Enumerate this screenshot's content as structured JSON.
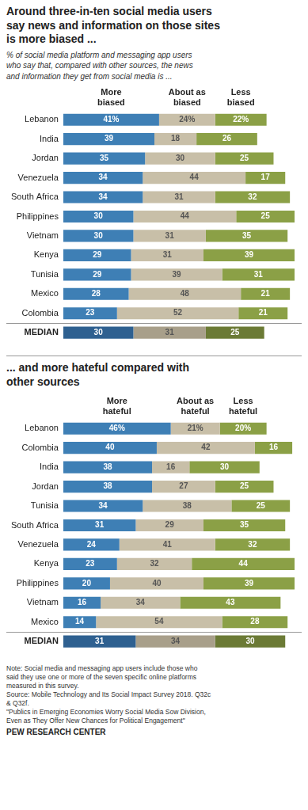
{
  "chart_data": [
    {
      "type": "bar",
      "orientation": "horizontal",
      "stacked": true,
      "title": "Around three-in-ten social media users\nsay news and information on those sites\nis more biased ...",
      "subtitle": "% of social media platform and messaging app users\nwho say that, compared with other sources, the news\nand information they get from social media is ...",
      "categories": [
        "Lebanon",
        "India",
        "Jordan",
        "Venezuela",
        "South Africa",
        "Philippines",
        "Vietnam",
        "Kenya",
        "Tunisia",
        "Mexico",
        "Colombia",
        "MEDIAN"
      ],
      "xlim": [
        0,
        100
      ],
      "grid": false,
      "tick_labels": "y",
      "data_labels": true,
      "series": [
        {
          "name": "More\nbiased",
          "values": [
            41,
            39,
            35,
            34,
            34,
            30,
            30,
            29,
            29,
            28,
            23,
            30
          ],
          "value_labels": [
            "41%",
            "39",
            "35",
            "34",
            "34",
            "30",
            "30",
            "29",
            "29",
            "28",
            "23",
            "30"
          ],
          "colors": [
            "#3E7FB5",
            "#3E7FB5",
            "#3E7FB5",
            "#3E7FB5",
            "#3E7FB5",
            "#3E7FB5",
            "#3E7FB5",
            "#3E7FB5",
            "#3E7FB5",
            "#3E7FB5",
            "#3E7FB5",
            "#2E6090"
          ]
        },
        {
          "name": "About as\nbiased",
          "values": [
            24,
            18,
            30,
            44,
            31,
            44,
            31,
            31,
            39,
            48,
            52,
            31
          ],
          "value_labels": [
            "24%",
            "18",
            "30",
            "44",
            "31",
            "44",
            "31",
            "31",
            "39",
            "48",
            "52",
            "31"
          ],
          "colors": [
            "#C8BFA8",
            "#C8BFA8",
            "#C8BFA8",
            "#C8BFA8",
            "#C8BFA8",
            "#C8BFA8",
            "#C8BFA8",
            "#C8BFA8",
            "#C8BFA8",
            "#C8BFA8",
            "#C8BFA8",
            "#A89F8A"
          ]
        },
        {
          "name": "Less\nbiased",
          "values": [
            22,
            26,
            25,
            17,
            32,
            25,
            35,
            39,
            31,
            21,
            21,
            25
          ],
          "value_labels": [
            "22%",
            "26",
            "25",
            "17",
            "32",
            "25",
            "35",
            "39",
            "31",
            "21",
            "21",
            "25"
          ],
          "colors": [
            "#8BA046",
            "#8BA046",
            "#8BA046",
            "#8BA046",
            "#8BA046",
            "#8BA046",
            "#8BA046",
            "#8BA046",
            "#8BA046",
            "#8BA046",
            "#8BA046",
            "#6B7A35"
          ]
        }
      ]
    },
    {
      "type": "bar",
      "orientation": "horizontal",
      "stacked": true,
      "title": "... and more hateful compared with\nother sources",
      "categories": [
        "Lebanon",
        "Colombia",
        "India",
        "Jordan",
        "Tunisia",
        "South Africa",
        "Venezuela",
        "Kenya",
        "Philippines",
        "Vietnam",
        "Mexico",
        "MEDIAN"
      ],
      "xlim": [
        0,
        100
      ],
      "grid": false,
      "tick_labels": "y",
      "data_labels": true,
      "series": [
        {
          "name": "More\nhateful",
          "values": [
            46,
            40,
            38,
            38,
            34,
            31,
            24,
            23,
            20,
            16,
            14,
            31
          ],
          "value_labels": [
            "46%",
            "40",
            "38",
            "38",
            "34",
            "31",
            "24",
            "23",
            "20",
            "16",
            "14",
            "31"
          ],
          "colors": [
            "#3E7FB5",
            "#3E7FB5",
            "#3E7FB5",
            "#3E7FB5",
            "#3E7FB5",
            "#3E7FB5",
            "#3E7FB5",
            "#3E7FB5",
            "#3E7FB5",
            "#3E7FB5",
            "#3E7FB5",
            "#2E6090"
          ]
        },
        {
          "name": "About as\nhateful",
          "values": [
            21,
            42,
            16,
            27,
            38,
            29,
            41,
            32,
            40,
            34,
            54,
            34
          ],
          "value_labels": [
            "21%",
            "42",
            "16",
            "27",
            "38",
            "29",
            "41",
            "32",
            "40",
            "34",
            "54",
            "34"
          ],
          "colors": [
            "#C8BFA8",
            "#C8BFA8",
            "#C8BFA8",
            "#C8BFA8",
            "#C8BFA8",
            "#C8BFA8",
            "#C8BFA8",
            "#C8BFA8",
            "#C8BFA8",
            "#C8BFA8",
            "#C8BFA8",
            "#A89F8A"
          ]
        },
        {
          "name": "Less\nhateful",
          "values": [
            20,
            16,
            30,
            25,
            25,
            35,
            32,
            44,
            39,
            43,
            28,
            30
          ],
          "value_labels": [
            "20%",
            "16",
            "30",
            "25",
            "25",
            "35",
            "32",
            "44",
            "39",
            "43",
            "28",
            "30"
          ],
          "colors": [
            "#8BA046",
            "#8BA046",
            "#8BA046",
            "#8BA046",
            "#8BA046",
            "#8BA046",
            "#8BA046",
            "#8BA046",
            "#8BA046",
            "#8BA046",
            "#8BA046",
            "#6B7A35"
          ]
        }
      ],
      "annotations": [
        "Note: Social media and messaging app users include those who\nsaid they use one or more of the seven specific online platforms\nmeasured in this survey.\nSource: Mobile Technology and Its Social Impact Survey 2018. Q32c\n& Q32f.\n\"Publics in Emerging Economies Worry Social Media Sow Division,\nEven as They Offer New Chances for Political Engagement\"",
        "PEW RESEARCH CENTER"
      ]
    }
  ]
}
